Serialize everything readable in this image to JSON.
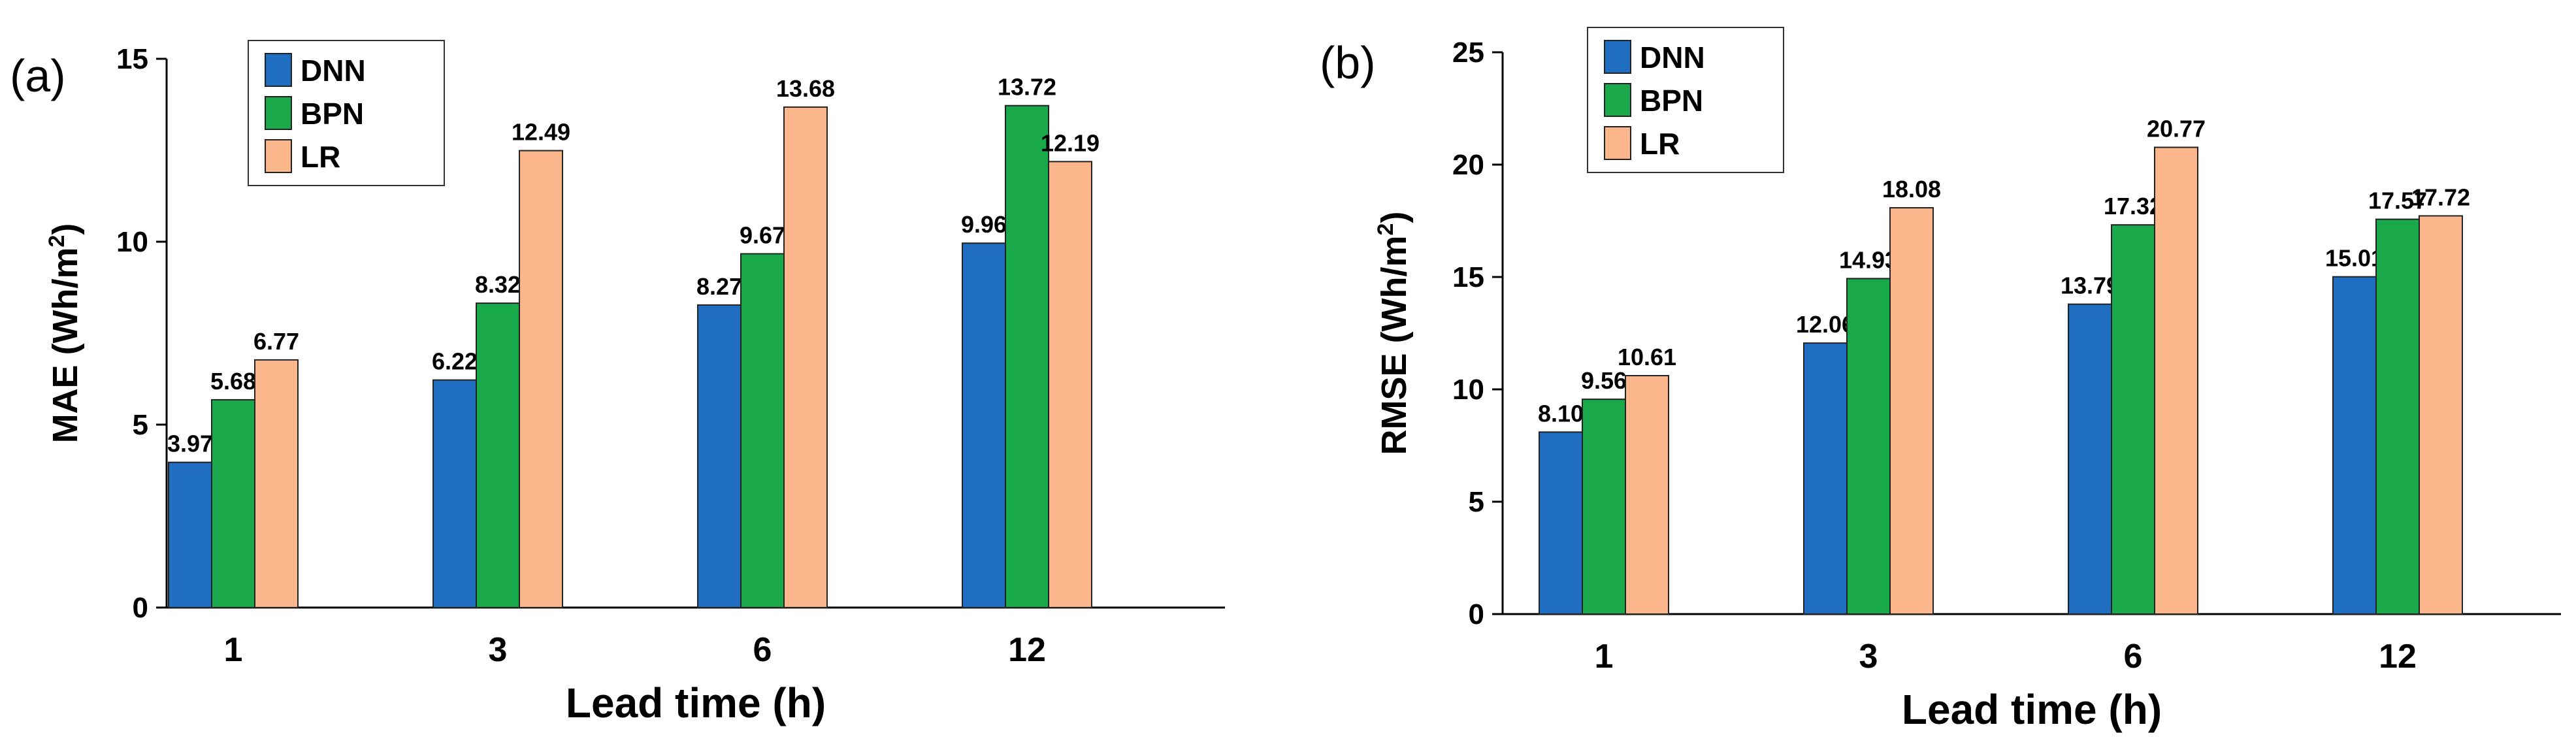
{
  "colors": {
    "DNN": "#1f6ec2",
    "BPN": "#19a84a",
    "LR": "#fbb68c"
  },
  "chart_data": [
    {
      "type": "bar",
      "panel_label": "(a)",
      "categories": [
        "1",
        "3",
        "6",
        "12"
      ],
      "series": [
        {
          "name": "DNN",
          "values": [
            3.97,
            6.22,
            8.27,
            9.96
          ]
        },
        {
          "name": "BPN",
          "values": [
            5.68,
            8.32,
            9.67,
            13.72
          ]
        },
        {
          "name": "LR",
          "values": [
            6.77,
            12.49,
            13.68,
            12.19
          ]
        }
      ],
      "value_labels": [
        [
          "3.97",
          "6.22",
          "8.27",
          "9.96"
        ],
        [
          "5.68",
          "8.32",
          "9.67",
          "13.72"
        ],
        [
          "6.77",
          "12.49",
          "13.68",
          "12.19"
        ]
      ],
      "xlabel": "Lead time (h)",
      "ylabel": "MAE (Wh/m",
      "ylabel_sup": "2",
      "ylabel_close": ")",
      "ylim": [
        0,
        15
      ],
      "yticks": [
        "0",
        "5",
        "10",
        "15"
      ],
      "legend": "top-left",
      "grid": false
    },
    {
      "type": "bar",
      "panel_label": "(b)",
      "categories": [
        "1",
        "3",
        "6",
        "12"
      ],
      "series": [
        {
          "name": "DNN",
          "values": [
            8.1,
            12.06,
            13.79,
            15.01
          ]
        },
        {
          "name": "BPN",
          "values": [
            9.56,
            14.93,
            17.32,
            17.57
          ]
        },
        {
          "name": "LR",
          "values": [
            10.61,
            18.08,
            20.77,
            17.72
          ]
        }
      ],
      "value_labels": [
        [
          "8.10",
          "12.06",
          "13.79",
          "15.01"
        ],
        [
          "9.56",
          "14.93",
          "17.32",
          "17.57"
        ],
        [
          "10.61",
          "18.08",
          "20.77",
          "17.72"
        ]
      ],
      "xlabel": "Lead time (h)",
      "ylabel": "RMSE (Wh/m",
      "ylabel_sup": "2",
      "ylabel_close": ")",
      "ylim": [
        0,
        25
      ],
      "yticks": [
        "0",
        "5",
        "10",
        "15",
        "20",
        "25"
      ],
      "legend": "top-left",
      "grid": false
    }
  ]
}
